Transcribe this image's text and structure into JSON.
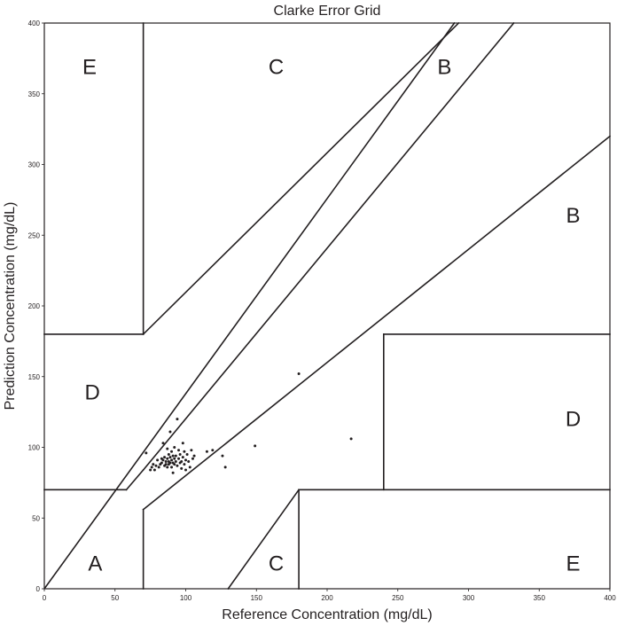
{
  "chart_data": {
    "type": "scatter",
    "title": "Clarke Error Grid",
    "xlabel": "Reference Concentration (mg/dL)",
    "ylabel": "Prediction Concentration (mg/dL)",
    "xlim": [
      0,
      400
    ],
    "ylim": [
      0,
      400
    ],
    "xticks": [
      "0",
      "50",
      "100",
      "150",
      "200",
      "250",
      "300",
      "350",
      "400"
    ],
    "yticks": [
      "0",
      "50",
      "100",
      "150",
      "200",
      "250",
      "300",
      "350",
      "400"
    ],
    "grid": false,
    "zones": [
      {
        "label": "E",
        "x": 32,
        "y": 369
      },
      {
        "label": "C",
        "x": 164,
        "y": 369
      },
      {
        "label": "B",
        "x": 283,
        "y": 369
      },
      {
        "label": "B",
        "x": 374,
        "y": 264
      },
      {
        "label": "D",
        "x": 34,
        "y": 139
      },
      {
        "label": "D",
        "x": 374,
        "y": 120
      },
      {
        "label": "A",
        "x": 36,
        "y": 18
      },
      {
        "label": "C",
        "x": 164,
        "y": 18
      },
      {
        "label": "E",
        "x": 374,
        "y": 18
      }
    ],
    "boundaries": [
      {
        "from": [
          0,
          0
        ],
        "to": [
          290,
          400
        ]
      },
      {
        "from": [
          70,
          84
        ],
        "to": [
          332,
          400
        ]
      },
      {
        "from": [
          70,
          56
        ],
        "to": [
          400,
          320
        ]
      },
      {
        "from": [
          0,
          180
        ],
        "to": [
          70,
          180
        ]
      },
      {
        "from": [
          70,
          180
        ],
        "to": [
          293,
          400
        ]
      },
      {
        "from": [
          70,
          0
        ],
        "to": [
          70,
          56
        ]
      },
      {
        "from": [
          70,
          400
        ],
        "to": [
          70,
          180
        ]
      },
      {
        "from": [
          0,
          70
        ],
        "to": [
          58,
          70
        ]
      },
      {
        "from": [
          58,
          70
        ],
        "to": [
          70,
          84
        ]
      },
      {
        "from": [
          240,
          70
        ],
        "to": [
          240,
          180
        ]
      },
      {
        "from": [
          240,
          180
        ],
        "to": [
          400,
          180
        ]
      },
      {
        "from": [
          180,
          0
        ],
        "to": [
          180,
          70
        ]
      },
      {
        "from": [
          180,
          70
        ],
        "to": [
          400,
          70
        ]
      },
      {
        "from": [
          130,
          0
        ],
        "to": [
          180,
          70
        ]
      }
    ],
    "series": [
      {
        "values": [
          [
            72,
            96
          ],
          [
            75,
            84
          ],
          [
            76,
            86
          ],
          [
            77,
            88
          ],
          [
            78,
            84
          ],
          [
            79,
            87
          ],
          [
            80,
            91
          ],
          [
            81,
            86
          ],
          [
            82,
            88
          ],
          [
            83,
            92
          ],
          [
            83,
            89
          ],
          [
            84,
            103
          ],
          [
            84,
            91
          ],
          [
            85,
            87
          ],
          [
            85,
            93
          ],
          [
            86,
            90
          ],
          [
            86,
            88
          ],
          [
            87,
            86
          ],
          [
            87,
            92
          ],
          [
            87,
            99
          ],
          [
            88,
            90
          ],
          [
            88,
            95
          ],
          [
            88,
            88
          ],
          [
            89,
            111
          ],
          [
            89,
            93
          ],
          [
            89,
            89
          ],
          [
            90,
            86
          ],
          [
            90,
            91
          ],
          [
            90,
            97
          ],
          [
            91,
            94
          ],
          [
            91,
            89
          ],
          [
            91,
            82
          ],
          [
            92,
            92
          ],
          [
            92,
            88
          ],
          [
            92,
            100
          ],
          [
            93,
            94
          ],
          [
            93,
            90
          ],
          [
            94,
            120
          ],
          [
            94,
            87
          ],
          [
            95,
            92
          ],
          [
            95,
            98
          ],
          [
            96,
            95
          ],
          [
            96,
            89
          ],
          [
            97,
            90
          ],
          [
            97,
            85
          ],
          [
            98,
            93
          ],
          [
            98,
            103
          ],
          [
            99,
            88
          ],
          [
            99,
            97
          ],
          [
            100,
            91
          ],
          [
            100,
            84
          ],
          [
            101,
            95
          ],
          [
            102,
            90
          ],
          [
            103,
            86
          ],
          [
            104,
            98
          ],
          [
            105,
            92
          ],
          [
            106,
            94
          ],
          [
            115,
            97
          ],
          [
            119,
            98
          ],
          [
            126,
            94
          ],
          [
            128,
            86
          ],
          [
            149,
            101
          ],
          [
            180,
            152
          ],
          [
            217,
            106
          ]
        ]
      }
    ]
  }
}
